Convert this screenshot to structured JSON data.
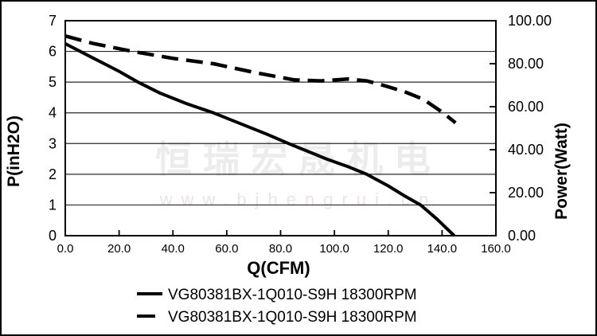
{
  "chart_data": {
    "type": "line",
    "title": "",
    "xlabel": "Q(CFM)",
    "ylabel_left": "P(inH2O)",
    "ylabel_right": "Power(Watt)",
    "xlim": [
      0,
      160
    ],
    "ylim_left": [
      0,
      7
    ],
    "ylim_right": [
      0,
      100
    ],
    "x_tick_labels": [
      "0.0",
      "20.0",
      "40.0",
      "60.0",
      "80.0",
      "100.0",
      "120.0",
      "140.0",
      "160.0"
    ],
    "y_left_tick_labels": [
      "0",
      "1",
      "2",
      "3",
      "4",
      "5",
      "6",
      "7"
    ],
    "y_right_tick_labels": [
      "0.00",
      "20.00",
      "40.00",
      "60.00",
      "80.00",
      "100.00"
    ],
    "grid": "horizontal-only",
    "legend_position": "bottom",
    "series": [
      {
        "name": "VG80381BX-1Q010-S9H 18300RPM",
        "axis": "left",
        "unit": "inH2O",
        "line_style": "solid",
        "x": [
          0,
          10,
          20,
          27,
          35,
          45,
          55,
          65,
          75,
          83,
          90,
          97,
          105,
          112,
          120,
          126,
          132,
          138,
          144.5
        ],
        "y": [
          6.25,
          5.8,
          5.35,
          5.0,
          4.65,
          4.3,
          4.0,
          3.65,
          3.3,
          3.0,
          2.75,
          2.5,
          2.25,
          2.0,
          1.62,
          1.3,
          1.0,
          0.55,
          0
        ]
      },
      {
        "name": "VG80381BX-1Q010-S9H 18300RPM",
        "axis": "right",
        "unit": "Watt",
        "line_style": "dashed",
        "x": [
          0,
          10,
          25,
          40,
          55,
          70,
          85,
          95,
          105,
          112,
          118,
          126,
          133,
          140,
          145
        ],
        "y": [
          92.9,
          89.5,
          85.7,
          82.5,
          80.0,
          76.0,
          72.5,
          72.0,
          72.9,
          72.0,
          70.0,
          67.0,
          63.5,
          57.5,
          52.5
        ]
      }
    ]
  },
  "legend": {
    "items": [
      {
        "label": "VG80381BX-1Q010-S9H 18300RPM",
        "swatch": "solid-line"
      },
      {
        "label": "VG80381BX-1Q010-S9H 18300RPM",
        "swatch": "dashed-line"
      }
    ]
  },
  "watermark": {
    "text": "恒瑞宏晟机电",
    "url": "www.bjhengrui.cn"
  },
  "colors": {
    "background": "#ffffff",
    "line": "#000000",
    "grid": "#2a2a2a",
    "axis": "#000000",
    "watermark_text": "#ececec",
    "watermark_url": "#f0e2e2"
  }
}
